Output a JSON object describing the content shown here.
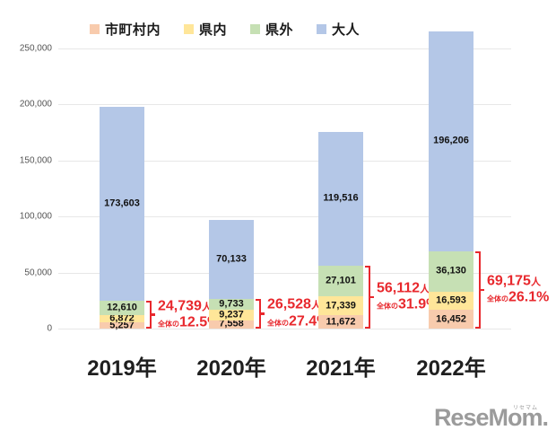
{
  "chart_data": {
    "type": "bar",
    "stacked": true,
    "categories": [
      "2019年",
      "2020年",
      "2021年",
      "2022年"
    ],
    "series": [
      {
        "name": "市町村内",
        "color": "#f8cbad",
        "values": [
          5257,
          7558,
          11672,
          16452
        ]
      },
      {
        "name": "県内",
        "color": "#ffe699",
        "values": [
          6872,
          9237,
          17339,
          16593
        ]
      },
      {
        "name": "県外",
        "color": "#c6e0b4",
        "values": [
          12610,
          9733,
          27101,
          36130
        ]
      },
      {
        "name": "大人",
        "color": "#b4c7e7",
        "values": [
          173603,
          70133,
          119516,
          196206
        ]
      }
    ],
    "value_labels": [
      [
        "5,257",
        "7,558",
        "11,672",
        "16,452"
      ],
      [
        "6,872",
        "9,237",
        "17,339",
        "16,593"
      ],
      [
        "12,610",
        "9,733",
        "27,101",
        "36,130"
      ],
      [
        "173,603",
        "70,133",
        "119,516",
        "196,206"
      ]
    ],
    "annotations": [
      {
        "people": "24,739",
        "unit": "人",
        "prefix": "全体の",
        "percent": "12.5%"
      },
      {
        "people": "26,528",
        "unit": "人",
        "prefix": "全体の",
        "percent": "27.4%"
      },
      {
        "people": "56,112",
        "unit": "人",
        "prefix": "全体の",
        "percent": "31.9%"
      },
      {
        "people": "69,175",
        "unit": "人",
        "prefix": "全体の",
        "percent": "26.1%"
      }
    ],
    "annotation_color": "#e8282d",
    "ylim": [
      0,
      250000
    ],
    "yticks": [
      "0",
      "50,000",
      "100,000",
      "150,000",
      "200,000",
      "250,000"
    ],
    "grid": true,
    "legend_position": "top",
    "title": "",
    "xlabel": "",
    "ylabel": ""
  },
  "watermark": {
    "text": "ReseMom",
    "dot": ".",
    "ruby": "リセマム"
  }
}
